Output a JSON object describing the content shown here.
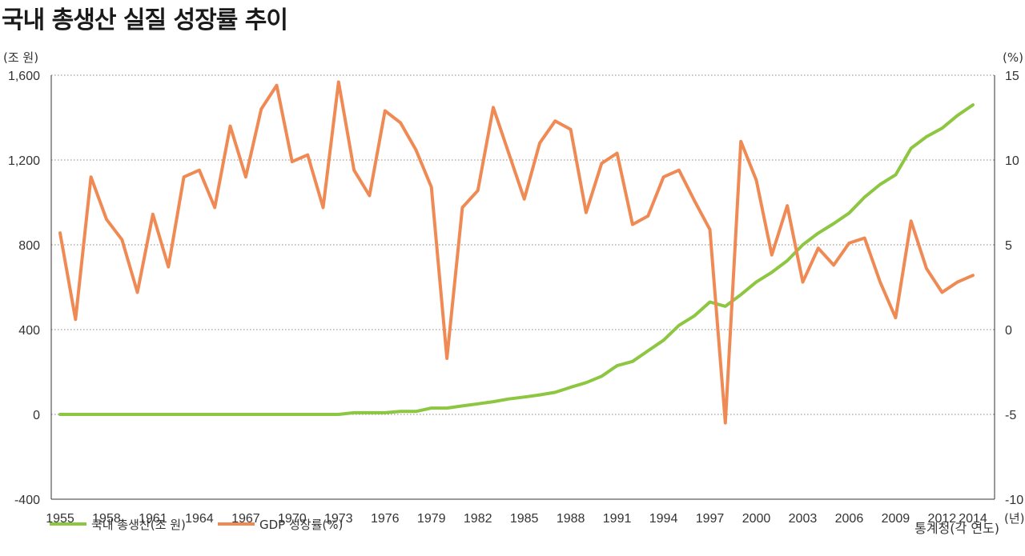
{
  "title": "국내 총생산 실질 성장률 추이",
  "source": "통계청(각 연도)",
  "colors": {
    "gdp": "#8dc641",
    "growth": "#f08a55",
    "grid": "#888888"
  },
  "chart_data": {
    "type": "line",
    "title": "국내 총생산 실질 성장률 추이",
    "y_left_label": "(조 원)",
    "y_right_label": "(%)",
    "x_unit_label": "(년)",
    "y_left_range": [
      -400,
      1600
    ],
    "y_left_ticks": [
      "1,600",
      "1,200",
      "800",
      "400",
      "0",
      "-400"
    ],
    "y_left_tick_values": [
      1600,
      1200,
      800,
      400,
      0,
      -400
    ],
    "y_right_range": [
      -10,
      15
    ],
    "y_right_ticks": [
      "15",
      "10",
      "5",
      "0",
      "-5",
      "-10"
    ],
    "y_right_tick_values": [
      15,
      10,
      5,
      0,
      -5,
      -10
    ],
    "x_range": [
      1955,
      2014
    ],
    "x_ticks": [
      "1955",
      "1958",
      "1961",
      "1964",
      "1967",
      "1970",
      "1973",
      "1976",
      "1979",
      "1982",
      "1985",
      "1988",
      "1991",
      "1994",
      "1997",
      "2000",
      "2003",
      "2006",
      "2009",
      "2012",
      "2014"
    ],
    "x": [
      1955,
      1956,
      1957,
      1958,
      1959,
      1960,
      1961,
      1962,
      1963,
      1964,
      1965,
      1966,
      1967,
      1968,
      1969,
      1970,
      1971,
      1972,
      1973,
      1974,
      1975,
      1976,
      1977,
      1978,
      1979,
      1980,
      1981,
      1982,
      1983,
      1984,
      1985,
      1986,
      1987,
      1988,
      1989,
      1990,
      1991,
      1992,
      1993,
      1994,
      1995,
      1996,
      1997,
      1998,
      1999,
      2000,
      2001,
      2002,
      2003,
      2004,
      2005,
      2006,
      2007,
      2008,
      2009,
      2010,
      2011,
      2012,
      2013,
      2014
    ],
    "series": [
      {
        "name": "국내 총생산(조 원)",
        "axis": "left",
        "values": [
          0,
          0,
          0,
          0,
          0,
          0,
          0,
          0,
          0,
          0,
          0,
          0,
          0,
          0,
          0,
          0,
          0,
          0,
          0,
          8,
          8,
          8,
          14,
          14,
          30,
          30,
          40,
          50,
          60,
          73,
          82,
          92,
          104,
          128,
          150,
          180,
          230,
          250,
          300,
          350,
          420,
          465,
          530,
          510,
          565,
          625,
          670,
          725,
          800,
          855,
          900,
          950,
          1025,
          1085,
          1130,
          1255,
          1310,
          1350,
          1410,
          1460
        ]
      },
      {
        "name": "GDP 성장률(%)",
        "axis": "right",
        "values": [
          5.7,
          0.6,
          9.0,
          6.5,
          5.3,
          2.2,
          6.8,
          3.7,
          9.0,
          9.4,
          7.2,
          12.0,
          9.0,
          13.0,
          14.4,
          9.9,
          10.3,
          7.2,
          14.6,
          9.4,
          7.9,
          12.9,
          12.2,
          10.6,
          8.4,
          -1.7,
          7.2,
          8.2,
          13.1,
          10.4,
          7.7,
          11.0,
          12.3,
          11.8,
          6.9,
          9.8,
          10.4,
          6.2,
          6.7,
          9.0,
          9.4,
          7.6,
          5.9,
          -5.5,
          11.1,
          8.8,
          4.4,
          7.3,
          2.8,
          4.8,
          3.8,
          5.1,
          5.4,
          2.8,
          0.7,
          6.4,
          3.6,
          2.2,
          2.8,
          3.2
        ]
      }
    ]
  }
}
